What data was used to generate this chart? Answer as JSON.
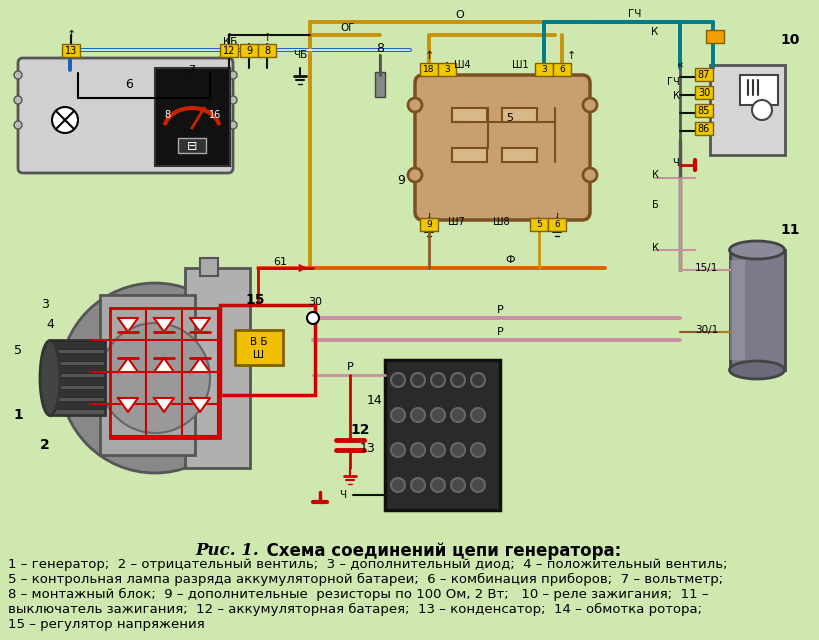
{
  "bg": "#cfe8b0",
  "wire_gold": "#c8920a",
  "wire_blue": "#1560bd",
  "wire_teal": "#007b8a",
  "wire_brown": "#8B5a2B",
  "wire_pink": "#c890a0",
  "wire_red": "#cc0000",
  "wire_black": "#111111",
  "wire_gray": "#888888",
  "title_fig": "Рис. 1.",
  "title_text": "  Схема соединений цепи генератора:",
  "caption_lines": [
    "1 – генератор;  2 – отрицательный вентиль;  3 – дополнительный диод;  4 – положительный вентиль;",
    "5 – контрольная лампа разряда аккумуляторной батареи;  6 – комбинация приборов;  7 – вольтметр;",
    "8 – монтажный блок;  9 – дополнительные  резисторы по 100 Ом, 2 Вт;   10 – реле зажигания;  11 –",
    "выключатель зажигания;  12 – аккумуляторная батарея;  13 – конденсатор;  14 – обмотка ротора;",
    "15 – регулятор напряжения"
  ],
  "title_fontsize": 12,
  "caption_fontsize": 9.5
}
